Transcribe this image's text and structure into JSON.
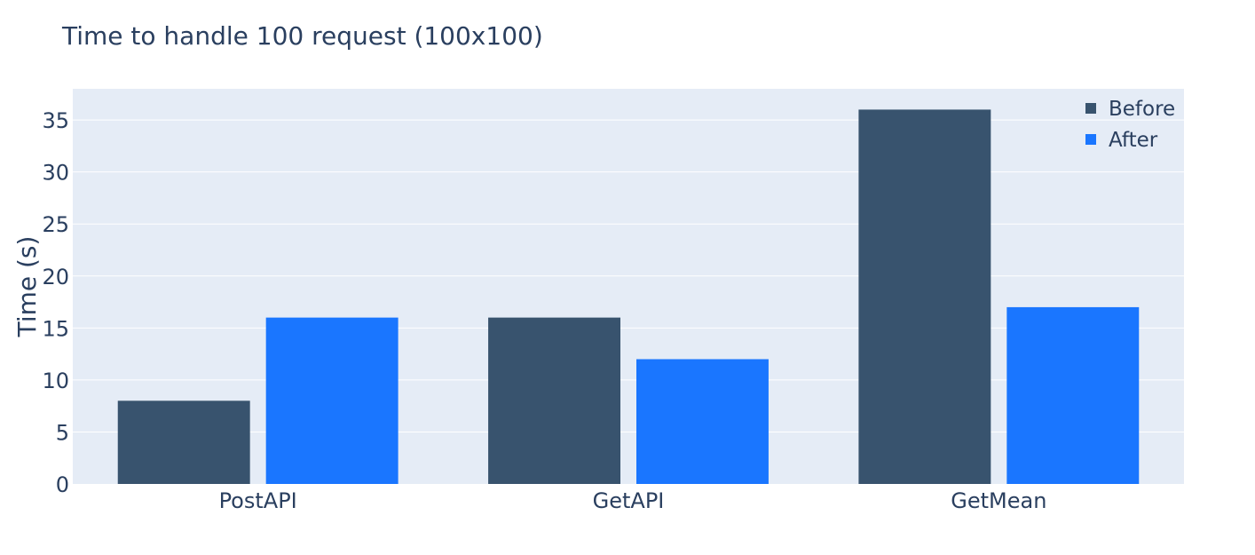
{
  "chart_data": {
    "type": "bar",
    "title": "Time to handle 100 request (100x100)",
    "xlabel": "",
    "ylabel": "Time (s)",
    "categories": [
      "PostAPI",
      "GetAPI",
      "GetMean"
    ],
    "series": [
      {
        "name": "Before",
        "values": [
          8,
          16,
          36
        ],
        "color": "#38536e"
      },
      {
        "name": "After",
        "values": [
          16,
          12,
          17
        ],
        "color": "#1a76ff"
      }
    ],
    "ylim": [
      0,
      38
    ],
    "yticks": [
      0,
      5,
      10,
      15,
      20,
      25,
      30,
      35
    ],
    "grid": true,
    "legend_position": "top-right",
    "plot_background": "#e5ecf6",
    "text_color": "#2a3f5f"
  }
}
